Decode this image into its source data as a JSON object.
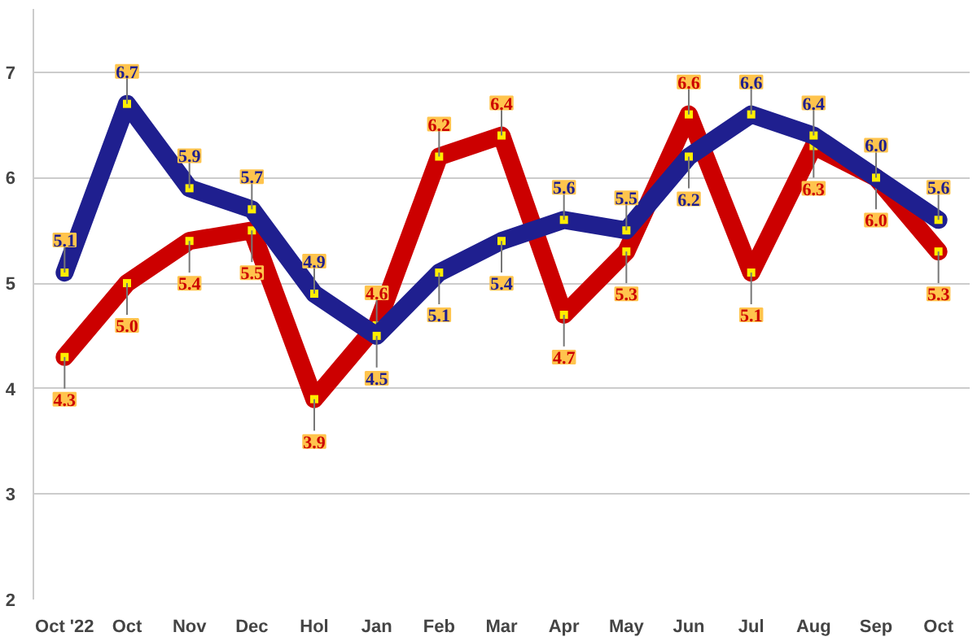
{
  "chart_data": {
    "type": "line",
    "categories": [
      "Oct '22",
      "Oct",
      "Nov",
      "Dec",
      "Hol",
      "Jan",
      "Feb",
      "Mar",
      "Apr",
      "May",
      "Jun",
      "Jul",
      "Aug",
      "Sep",
      "Oct"
    ],
    "series": [
      {
        "color": "#cc0000",
        "values": [
          4.3,
          5.0,
          5.4,
          5.5,
          3.9,
          4.6,
          6.2,
          6.4,
          4.7,
          5.3,
          6.6,
          5.1,
          6.3,
          6.0,
          5.3
        ],
        "value_labels": [
          "4.3",
          "5.0",
          "5.4",
          "5.5",
          "3.9",
          "4.6",
          "6.2",
          "6.4",
          "4.7",
          "5.3",
          "6.6",
          "5.1",
          "6.3",
          "6.0",
          "5.3"
        ]
      },
      {
        "color": "#1f1f8f",
        "values": [
          5.1,
          6.7,
          5.9,
          5.7,
          4.9,
          4.5,
          5.1,
          5.4,
          5.6,
          5.5,
          6.2,
          6.6,
          6.4,
          6.0,
          5.6
        ],
        "value_labels": [
          "5.1",
          "6.7",
          "5.9",
          "5.7",
          "4.9",
          "4.5",
          "5.1",
          "5.4",
          "5.6",
          "5.5",
          "6.2",
          "6.6",
          "6.4",
          "6.0",
          "5.6"
        ]
      }
    ],
    "ylim": [
      2,
      7.6
    ],
    "yticks": [
      2,
      3,
      4,
      5,
      6,
      7
    ],
    "grid": "y",
    "marker": "square",
    "line_style": "solid"
  }
}
